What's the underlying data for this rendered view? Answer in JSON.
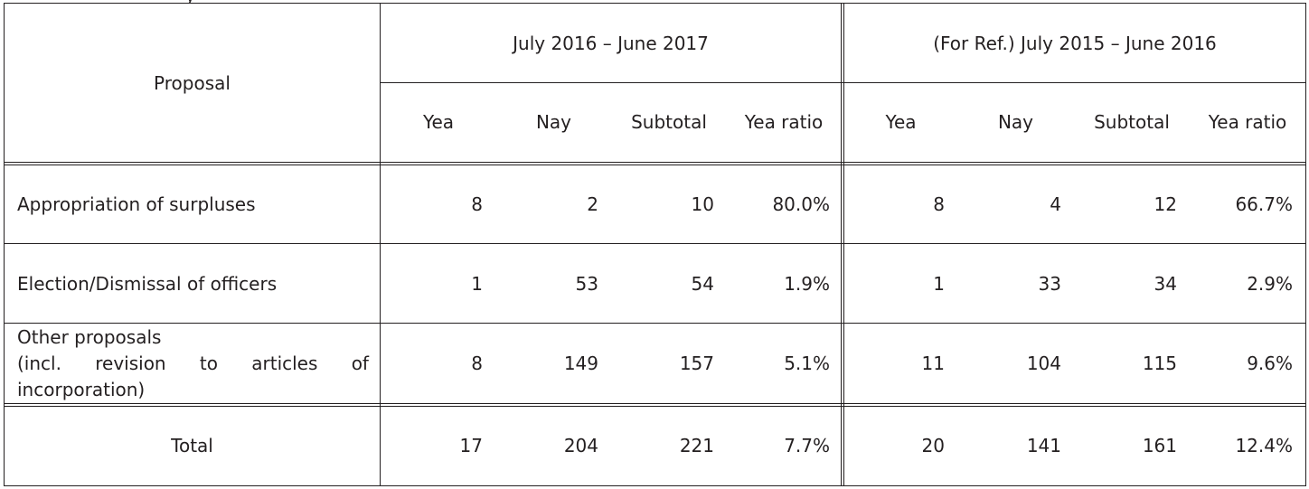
{
  "table": {
    "corner_header": "Proposal",
    "period_current": "July 2016 – June 2017",
    "period_reference": "(For Ref.) July 2015 – June 2016",
    "sub_headers": [
      "Yea",
      "Nay",
      "Subtotal",
      "Yea ratio",
      "Yea",
      "Nay",
      "Subtotal",
      "Yea ratio"
    ],
    "rows": [
      {
        "proposal": "Appropriation of surpluses",
        "values": [
          "8",
          "2",
          "10",
          "80.0%",
          "8",
          "4",
          "12",
          "66.7%"
        ]
      },
      {
        "proposal": "Election/Dismissal of officers",
        "values": [
          "1",
          "53",
          "54",
          "1.9%",
          "1",
          "33",
          "34",
          "2.9%"
        ]
      },
      {
        "proposal_lines": [
          "Other proposals",
          [
            "(incl.",
            "revision",
            "to",
            "articles",
            "of"
          ],
          "incorporation)"
        ],
        "values": [
          "8",
          "149",
          "157",
          "5.1%",
          "11",
          "104",
          "115",
          "9.6%"
        ]
      }
    ],
    "total": {
      "label": "Total",
      "values": [
        "17",
        "204",
        "221",
        "7.7%",
        "20",
        "141",
        "161",
        "12.4%"
      ]
    }
  }
}
